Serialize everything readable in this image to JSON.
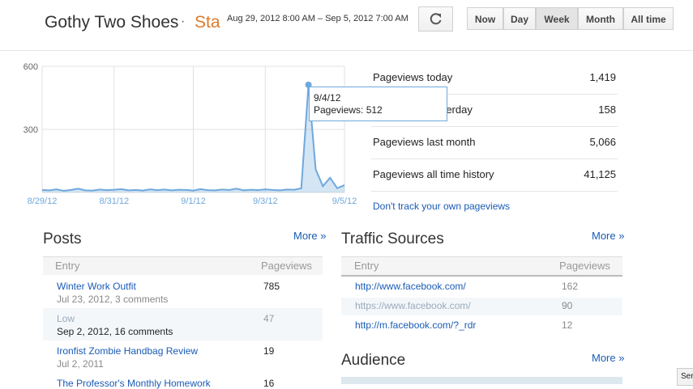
{
  "header": {
    "blog_title": "Gothy Two Shoes",
    "separator": "·",
    "section": "Sta",
    "date_range": "Aug 29, 2012 8:00 AM – Sep 5, 2012 7:00 AM",
    "buttons": [
      "Now",
      "Day",
      "Week",
      "Month",
      "All time"
    ],
    "selected_button": "Week"
  },
  "chart_data": {
    "type": "line",
    "color": "#6fa8dc",
    "categories": [
      "8/29/12",
      null,
      null,
      null,
      null,
      null,
      null,
      null,
      null,
      null,
      "8/31/12",
      null,
      null,
      null,
      null,
      null,
      null,
      null,
      null,
      null,
      null,
      "9/1/12",
      null,
      null,
      null,
      null,
      null,
      null,
      null,
      null,
      null,
      "9/3/12",
      null,
      null,
      null,
      null,
      null,
      null,
      null,
      null,
      null,
      null,
      "9/5/12"
    ],
    "values": [
      12,
      10,
      15,
      8,
      12,
      18,
      10,
      9,
      14,
      11,
      13,
      16,
      10,
      12,
      9,
      15,
      11,
      14,
      10,
      13,
      12,
      9,
      16,
      11,
      10,
      14,
      12,
      18,
      10,
      13,
      11,
      15,
      12,
      10,
      14,
      13,
      20,
      512,
      110,
      30,
      70,
      20,
      35
    ],
    "ylim": [
      0,
      600
    ],
    "yticks": [
      300,
      600
    ],
    "grid": true,
    "tooltip": {
      "title": "9/4/12",
      "text": "Pageviews: 512",
      "index": 37
    }
  },
  "stats": {
    "rows": [
      [
        "Pageviews today",
        "1,419"
      ],
      [
        "Pageviews yesterday",
        "158"
      ],
      [
        "Pageviews last month",
        "5,066"
      ],
      [
        "Pageviews all time history",
        "41,125"
      ]
    ],
    "link": "Don't track your own pageviews"
  },
  "posts": {
    "title": "Posts",
    "more": "More »",
    "columns": [
      "Entry",
      "Pageviews"
    ],
    "rows": [
      {
        "entry": "Winter Work Outfit",
        "meta": "Jul 23, 2012, 3 comments",
        "views": "785"
      },
      {
        "entry": "Low",
        "meta": "Sep 2, 2012, 16 comments",
        "views": "47"
      },
      {
        "entry": "Ironfist Zombie Handbag Review",
        "meta": "Jul 2, 2011",
        "views": "19"
      },
      {
        "entry": "The Professor's Monthly Homework",
        "meta": "",
        "views": "16"
      }
    ]
  },
  "traffic": {
    "title": "Traffic Sources",
    "more": "More »",
    "columns": [
      "Entry",
      "Pageviews"
    ],
    "rows": [
      [
        "http://www.facebook.com/",
        "162"
      ],
      [
        "https://www.facebook.com/",
        "90"
      ],
      [
        "http://m.facebook.com/?_rdr",
        "12"
      ]
    ]
  },
  "audience": {
    "title": "Audience",
    "more": "More »"
  },
  "corner_button": "Ser"
}
